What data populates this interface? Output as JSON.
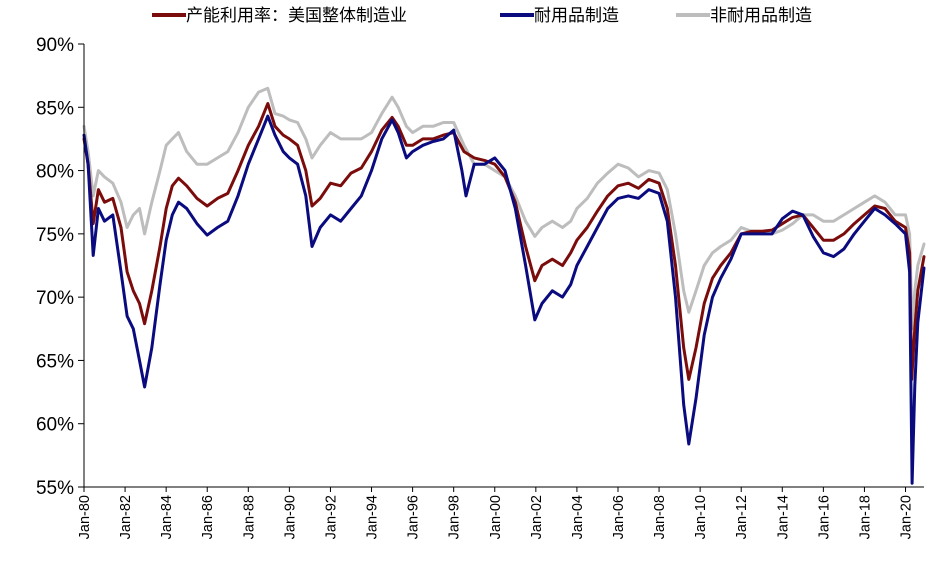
{
  "chart_data": {
    "type": "line",
    "title": "",
    "xlabel": "",
    "ylabel": "",
    "ylim": [
      55,
      90
    ],
    "y_ticks": [
      55,
      60,
      65,
      70,
      75,
      80,
      85,
      90
    ],
    "y_tick_labels": [
      "55%",
      "60%",
      "65%",
      "70%",
      "75%",
      "80%",
      "85%",
      "90%"
    ],
    "x_range": [
      1980.0,
      2020.9
    ],
    "x_tick_labels": [
      "Jan-80",
      "Jan-82",
      "Jan-84",
      "Jan-86",
      "Jan-88",
      "Jan-90",
      "Jan-92",
      "Jan-94",
      "Jan-96",
      "Jan-98",
      "Jan-00",
      "Jan-02",
      "Jan-04",
      "Jan-06",
      "Jan-08",
      "Jan-10",
      "Jan-12",
      "Jan-14",
      "Jan-16",
      "Jan-18",
      "Jan-20"
    ],
    "x_tick_values": [
      1980,
      1982,
      1984,
      1986,
      1988,
      1990,
      1992,
      1994,
      1996,
      1998,
      2000,
      2002,
      2004,
      2006,
      2008,
      2010,
      2012,
      2014,
      2016,
      2018,
      2020
    ],
    "legend_position": "top",
    "series": [
      {
        "name": "产能利用率：美国整体制造业",
        "color": "#7b0c0c",
        "points": [
          [
            1980.0,
            82.5
          ],
          [
            1980.2,
            80.5
          ],
          [
            1980.45,
            75.8
          ],
          [
            1980.7,
            78.5
          ],
          [
            1981.0,
            77.5
          ],
          [
            1981.4,
            77.8
          ],
          [
            1981.8,
            75.5
          ],
          [
            1982.1,
            72.0
          ],
          [
            1982.4,
            70.5
          ],
          [
            1982.7,
            69.5
          ],
          [
            1982.95,
            67.9
          ],
          [
            1983.3,
            70.5
          ],
          [
            1983.7,
            74.0
          ],
          [
            1984.0,
            77.0
          ],
          [
            1984.3,
            78.8
          ],
          [
            1984.6,
            79.4
          ],
          [
            1985.0,
            78.8
          ],
          [
            1985.5,
            77.8
          ],
          [
            1986.0,
            77.2
          ],
          [
            1986.5,
            77.8
          ],
          [
            1987.0,
            78.2
          ],
          [
            1987.5,
            80.0
          ],
          [
            1988.0,
            82.0
          ],
          [
            1988.5,
            83.5
          ],
          [
            1988.95,
            85.3
          ],
          [
            1989.3,
            83.5
          ],
          [
            1989.7,
            82.8
          ],
          [
            1990.0,
            82.5
          ],
          [
            1990.4,
            82.0
          ],
          [
            1990.8,
            80.0
          ],
          [
            1991.1,
            77.2
          ],
          [
            1991.5,
            77.8
          ],
          [
            1992.0,
            79.0
          ],
          [
            1992.5,
            78.8
          ],
          [
            1993.0,
            79.8
          ],
          [
            1993.5,
            80.2
          ],
          [
            1994.0,
            81.5
          ],
          [
            1994.5,
            83.2
          ],
          [
            1995.0,
            84.2
          ],
          [
            1995.3,
            83.5
          ],
          [
            1995.7,
            82.0
          ],
          [
            1996.0,
            82.0
          ],
          [
            1996.5,
            82.5
          ],
          [
            1997.0,
            82.5
          ],
          [
            1997.5,
            82.8
          ],
          [
            1998.0,
            83.0
          ],
          [
            1998.5,
            81.5
          ],
          [
            1999.0,
            81.0
          ],
          [
            1999.5,
            80.8
          ],
          [
            2000.0,
            80.5
          ],
          [
            2000.5,
            79.5
          ],
          [
            2001.0,
            77.5
          ],
          [
            2001.5,
            74.0
          ],
          [
            2001.95,
            71.3
          ],
          [
            2002.3,
            72.5
          ],
          [
            2002.8,
            73.0
          ],
          [
            2003.3,
            72.5
          ],
          [
            2003.7,
            73.5
          ],
          [
            2004.0,
            74.5
          ],
          [
            2004.5,
            75.5
          ],
          [
            2005.0,
            76.8
          ],
          [
            2005.5,
            78.0
          ],
          [
            2006.0,
            78.8
          ],
          [
            2006.5,
            79.0
          ],
          [
            2007.0,
            78.6
          ],
          [
            2007.5,
            79.3
          ],
          [
            2008.0,
            79.0
          ],
          [
            2008.4,
            77.0
          ],
          [
            2008.8,
            72.5
          ],
          [
            2009.2,
            66.0
          ],
          [
            2009.45,
            63.5
          ],
          [
            2009.8,
            66.0
          ],
          [
            2010.2,
            69.5
          ],
          [
            2010.6,
            71.5
          ],
          [
            2011.0,
            72.5
          ],
          [
            2011.5,
            73.5
          ],
          [
            2012.0,
            75.0
          ],
          [
            2012.5,
            75.2
          ],
          [
            2013.0,
            75.2
          ],
          [
            2013.5,
            75.3
          ],
          [
            2014.0,
            75.8
          ],
          [
            2014.5,
            76.3
          ],
          [
            2015.0,
            76.5
          ],
          [
            2015.5,
            75.5
          ],
          [
            2016.0,
            74.5
          ],
          [
            2016.5,
            74.5
          ],
          [
            2017.0,
            75.0
          ],
          [
            2017.5,
            75.8
          ],
          [
            2018.0,
            76.5
          ],
          [
            2018.5,
            77.2
          ],
          [
            2019.0,
            77.0
          ],
          [
            2019.5,
            76.0
          ],
          [
            2020.0,
            75.5
          ],
          [
            2020.2,
            73.5
          ],
          [
            2020.3,
            63.5
          ],
          [
            2020.45,
            67.5
          ],
          [
            2020.6,
            70.5
          ],
          [
            2020.9,
            73.2
          ]
        ]
      },
      {
        "name": "耐用品制造",
        "color": "#0b0b80",
        "points": [
          [
            1980.0,
            82.8
          ],
          [
            1980.2,
            80.5
          ],
          [
            1980.45,
            73.3
          ],
          [
            1980.7,
            77.0
          ],
          [
            1981.0,
            76.0
          ],
          [
            1981.4,
            76.5
          ],
          [
            1981.8,
            72.0
          ],
          [
            1982.1,
            68.5
          ],
          [
            1982.4,
            67.5
          ],
          [
            1982.7,
            65.0
          ],
          [
            1982.95,
            62.9
          ],
          [
            1983.3,
            66.0
          ],
          [
            1983.7,
            71.0
          ],
          [
            1984.0,
            74.5
          ],
          [
            1984.3,
            76.5
          ],
          [
            1984.6,
            77.5
          ],
          [
            1985.0,
            77.0
          ],
          [
            1985.5,
            75.8
          ],
          [
            1986.0,
            74.9
          ],
          [
            1986.5,
            75.5
          ],
          [
            1987.0,
            76.0
          ],
          [
            1987.5,
            78.0
          ],
          [
            1988.0,
            80.5
          ],
          [
            1988.5,
            82.5
          ],
          [
            1988.95,
            84.3
          ],
          [
            1989.3,
            82.8
          ],
          [
            1989.7,
            81.5
          ],
          [
            1990.0,
            81.0
          ],
          [
            1990.4,
            80.5
          ],
          [
            1990.8,
            78.0
          ],
          [
            1991.1,
            74.0
          ],
          [
            1991.5,
            75.5
          ],
          [
            1992.0,
            76.5
          ],
          [
            1992.5,
            76.0
          ],
          [
            1993.0,
            77.0
          ],
          [
            1993.5,
            78.0
          ],
          [
            1994.0,
            80.0
          ],
          [
            1994.5,
            82.5
          ],
          [
            1995.0,
            84.0
          ],
          [
            1995.3,
            83.0
          ],
          [
            1995.7,
            81.0
          ],
          [
            1996.0,
            81.5
          ],
          [
            1996.5,
            82.0
          ],
          [
            1997.0,
            82.3
          ],
          [
            1997.5,
            82.5
          ],
          [
            1998.0,
            83.2
          ],
          [
            1998.4,
            80.0
          ],
          [
            1998.6,
            78.0
          ],
          [
            1999.0,
            80.5
          ],
          [
            1999.5,
            80.5
          ],
          [
            2000.0,
            81.0
          ],
          [
            2000.5,
            80.0
          ],
          [
            2001.0,
            77.0
          ],
          [
            2001.5,
            72.5
          ],
          [
            2001.95,
            68.2
          ],
          [
            2002.3,
            69.5
          ],
          [
            2002.8,
            70.5
          ],
          [
            2003.3,
            70.0
          ],
          [
            2003.7,
            71.0
          ],
          [
            2004.0,
            72.5
          ],
          [
            2004.5,
            74.0
          ],
          [
            2005.0,
            75.5
          ],
          [
            2005.5,
            77.0
          ],
          [
            2006.0,
            77.8
          ],
          [
            2006.5,
            78.0
          ],
          [
            2007.0,
            77.8
          ],
          [
            2007.5,
            78.5
          ],
          [
            2008.0,
            78.2
          ],
          [
            2008.4,
            76.0
          ],
          [
            2008.8,
            70.0
          ],
          [
            2009.2,
            61.5
          ],
          [
            2009.45,
            58.4
          ],
          [
            2009.8,
            62.0
          ],
          [
            2010.2,
            67.0
          ],
          [
            2010.6,
            70.0
          ],
          [
            2011.0,
            71.5
          ],
          [
            2011.5,
            73.0
          ],
          [
            2012.0,
            75.0
          ],
          [
            2012.5,
            75.0
          ],
          [
            2013.0,
            75.0
          ],
          [
            2013.5,
            75.0
          ],
          [
            2014.0,
            76.2
          ],
          [
            2014.5,
            76.8
          ],
          [
            2015.0,
            76.5
          ],
          [
            2015.5,
            74.8
          ],
          [
            2016.0,
            73.5
          ],
          [
            2016.5,
            73.2
          ],
          [
            2017.0,
            73.8
          ],
          [
            2017.5,
            75.0
          ],
          [
            2018.0,
            76.0
          ],
          [
            2018.5,
            77.0
          ],
          [
            2019.0,
            76.5
          ],
          [
            2019.5,
            75.8
          ],
          [
            2020.0,
            75.0
          ],
          [
            2020.2,
            72.0
          ],
          [
            2020.32,
            55.3
          ],
          [
            2020.45,
            63.0
          ],
          [
            2020.6,
            68.0
          ],
          [
            2020.9,
            72.3
          ]
        ]
      },
      {
        "name": "非耐用品制造",
        "color": "#bdbdbd",
        "points": [
          [
            1980.0,
            83.5
          ],
          [
            1980.2,
            81.5
          ],
          [
            1980.45,
            78.0
          ],
          [
            1980.7,
            80.0
          ],
          [
            1981.0,
            79.5
          ],
          [
            1981.4,
            79.0
          ],
          [
            1981.8,
            77.5
          ],
          [
            1982.1,
            75.5
          ],
          [
            1982.4,
            76.5
          ],
          [
            1982.7,
            77.0
          ],
          [
            1982.95,
            75.0
          ],
          [
            1983.3,
            77.5
          ],
          [
            1983.7,
            80.0
          ],
          [
            1984.0,
            82.0
          ],
          [
            1984.3,
            82.5
          ],
          [
            1984.6,
            83.0
          ],
          [
            1985.0,
            81.5
          ],
          [
            1985.5,
            80.5
          ],
          [
            1986.0,
            80.5
          ],
          [
            1986.5,
            81.0
          ],
          [
            1987.0,
            81.5
          ],
          [
            1987.5,
            83.0
          ],
          [
            1988.0,
            85.0
          ],
          [
            1988.5,
            86.2
          ],
          [
            1988.95,
            86.5
          ],
          [
            1989.3,
            84.5
          ],
          [
            1989.7,
            84.3
          ],
          [
            1990.0,
            84.0
          ],
          [
            1990.4,
            83.8
          ],
          [
            1990.8,
            82.5
          ],
          [
            1991.1,
            81.0
          ],
          [
            1991.5,
            82.0
          ],
          [
            1992.0,
            83.0
          ],
          [
            1992.5,
            82.5
          ],
          [
            1993.0,
            82.5
          ],
          [
            1993.5,
            82.5
          ],
          [
            1994.0,
            83.0
          ],
          [
            1994.5,
            84.5
          ],
          [
            1995.0,
            85.8
          ],
          [
            1995.3,
            85.0
          ],
          [
            1995.7,
            83.5
          ],
          [
            1996.0,
            83.0
          ],
          [
            1996.5,
            83.5
          ],
          [
            1997.0,
            83.5
          ],
          [
            1997.5,
            83.8
          ],
          [
            1998.0,
            83.8
          ],
          [
            1998.5,
            82.0
          ],
          [
            1999.0,
            80.5
          ],
          [
            1999.5,
            80.5
          ],
          [
            2000.0,
            80.0
          ],
          [
            2000.5,
            79.5
          ],
          [
            2001.0,
            78.0
          ],
          [
            2001.5,
            76.0
          ],
          [
            2001.95,
            74.8
          ],
          [
            2002.3,
            75.5
          ],
          [
            2002.8,
            76.0
          ],
          [
            2003.3,
            75.5
          ],
          [
            2003.7,
            76.0
          ],
          [
            2004.0,
            77.0
          ],
          [
            2004.5,
            77.8
          ],
          [
            2005.0,
            79.0
          ],
          [
            2005.5,
            79.8
          ],
          [
            2006.0,
            80.5
          ],
          [
            2006.5,
            80.2
          ],
          [
            2007.0,
            79.5
          ],
          [
            2007.5,
            80.0
          ],
          [
            2008.0,
            79.8
          ],
          [
            2008.4,
            78.5
          ],
          [
            2008.8,
            75.0
          ],
          [
            2009.2,
            70.5
          ],
          [
            2009.45,
            68.8
          ],
          [
            2009.8,
            70.5
          ],
          [
            2010.2,
            72.5
          ],
          [
            2010.6,
            73.5
          ],
          [
            2011.0,
            74.0
          ],
          [
            2011.5,
            74.5
          ],
          [
            2012.0,
            75.5
          ],
          [
            2012.5,
            75.2
          ],
          [
            2013.0,
            75.0
          ],
          [
            2013.5,
            75.0
          ],
          [
            2014.0,
            75.3
          ],
          [
            2014.5,
            75.8
          ],
          [
            2015.0,
            76.5
          ],
          [
            2015.5,
            76.5
          ],
          [
            2016.0,
            76.0
          ],
          [
            2016.5,
            76.0
          ],
          [
            2017.0,
            76.5
          ],
          [
            2017.5,
            77.0
          ],
          [
            2018.0,
            77.5
          ],
          [
            2018.5,
            78.0
          ],
          [
            2019.0,
            77.5
          ],
          [
            2019.5,
            76.5
          ],
          [
            2020.0,
            76.5
          ],
          [
            2020.2,
            75.0
          ],
          [
            2020.32,
            67.5
          ],
          [
            2020.45,
            70.5
          ],
          [
            2020.6,
            72.5
          ],
          [
            2020.9,
            74.2
          ]
        ]
      }
    ]
  }
}
